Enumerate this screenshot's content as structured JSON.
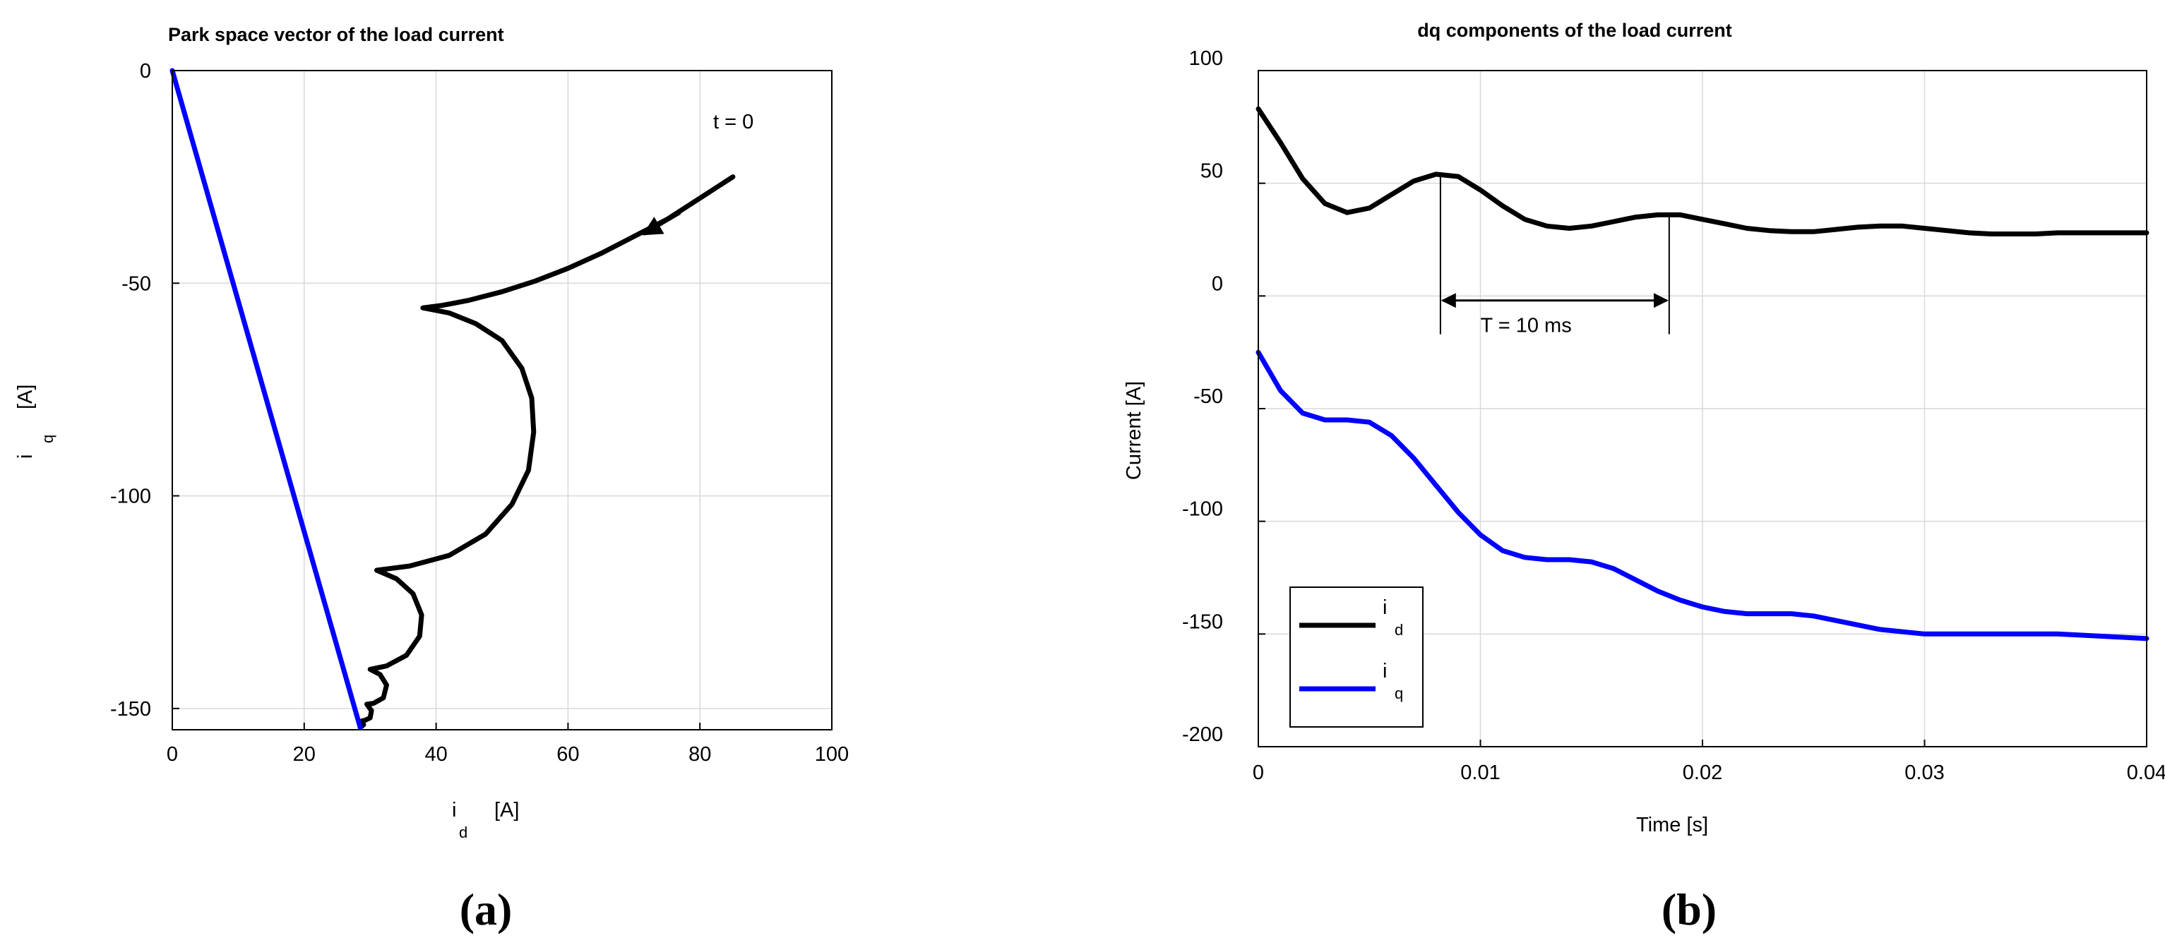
{
  "colors": {
    "id": "#000000",
    "iq": "#0000ff",
    "grid": "#d9d9d9"
  },
  "chart_data": [
    {
      "type": "line",
      "panel_label": "(a)",
      "title": "Park space vector of the load current",
      "xlabel_main": "i",
      "xlabel_sub": "d",
      "xlabel_unit": "[A]",
      "ylabel_main": "i",
      "ylabel_sub": "q",
      "ylabel_unit": "[A]",
      "xlim": [
        0,
        100
      ],
      "ylim": [
        -155,
        0
      ],
      "xticks": [
        0,
        20,
        40,
        60,
        80,
        100
      ],
      "yticks": [
        0,
        -50,
        -100,
        -150
      ],
      "grid": true,
      "annotation": "t = 0",
      "series": [
        {
          "color": "#000000",
          "points": [
            [
              85,
              -25
            ],
            [
              80,
              -30
            ],
            [
              75,
              -35
            ],
            [
              70,
              -39
            ],
            [
              65,
              -43
            ],
            [
              60,
              -46.5
            ],
            [
              55,
              -49.5
            ],
            [
              50,
              -52
            ],
            [
              45,
              -54
            ],
            [
              41,
              -55.2
            ],
            [
              38,
              -55.8
            ],
            [
              42,
              -57
            ],
            [
              46,
              -59.5
            ],
            [
              50,
              -63.5
            ],
            [
              53,
              -70
            ],
            [
              54.5,
              -77
            ],
            [
              54.8,
              -85
            ],
            [
              54,
              -94
            ],
            [
              51.5,
              -102
            ],
            [
              47.5,
              -109
            ],
            [
              42,
              -114
            ],
            [
              36,
              -116.5
            ],
            [
              31,
              -117.5
            ],
            [
              34,
              -119.5
            ],
            [
              36.5,
              -123
            ],
            [
              37.8,
              -128
            ],
            [
              37.5,
              -133
            ],
            [
              35.5,
              -137.5
            ],
            [
              32.5,
              -140
            ],
            [
              30,
              -140.8
            ],
            [
              31.5,
              -142
            ],
            [
              32.5,
              -144.5
            ],
            [
              32,
              -147.5
            ],
            [
              30.5,
              -148.8
            ],
            [
              29.5,
              -149
            ],
            [
              30.2,
              -150.5
            ],
            [
              30,
              -152.2
            ],
            [
              29.2,
              -152.8
            ],
            [
              28.8,
              -152.9
            ],
            [
              29,
              -153.8
            ],
            [
              28.5,
              -154.5
            ]
          ]
        },
        {
          "color": "#0000ff",
          "points": [
            [
              0,
              0
            ],
            [
              28.5,
              -154.5
            ]
          ]
        }
      ]
    },
    {
      "type": "line",
      "panel_label": "(b)",
      "title": "dq components of the load current",
      "xlabel": "Time   [s]",
      "ylabel": "Current   [A]",
      "xlim": [
        0,
        0.04
      ],
      "ylim": [
        -200,
        100
      ],
      "xticks": [
        "0",
        "0.01",
        "0.02",
        "0.03",
        "0.04"
      ],
      "yticks": [
        "100",
        "50",
        "0",
        "-50",
        "-100",
        "-150",
        "-200"
      ],
      "grid": true,
      "legend_position": "bottom-left",
      "annotation": "T = 10 ms",
      "series": [
        {
          "legend_main": "i",
          "legend_sub": "d",
          "color": "#000000",
          "x": [
            0,
            0.001,
            0.002,
            0.003,
            0.004,
            0.005,
            0.006,
            0.007,
            0.008,
            0.009,
            0.01,
            0.011,
            0.012,
            0.013,
            0.014,
            0.015,
            0.016,
            0.017,
            0.018,
            0.019,
            0.02,
            0.021,
            0.022,
            0.023,
            0.024,
            0.025,
            0.026,
            0.027,
            0.028,
            0.029,
            0.03,
            0.031,
            0.032,
            0.033,
            0.034,
            0.035,
            0.036,
            0.037,
            0.038,
            0.039,
            0.04
          ],
          "y": [
            83,
            68,
            52,
            41,
            37,
            39,
            45,
            51,
            54,
            53,
            47,
            40,
            34,
            31,
            30,
            31,
            33,
            35,
            36,
            36,
            34,
            32,
            30,
            29,
            28.5,
            28.5,
            29.5,
            30.5,
            31,
            31,
            30,
            29,
            28,
            27.5,
            27.5,
            27.5,
            28,
            28,
            28,
            28,
            28
          ]
        },
        {
          "legend_main": "i",
          "legend_sub": "q",
          "color": "#0000ff",
          "x": [
            0,
            0.001,
            0.002,
            0.003,
            0.004,
            0.005,
            0.006,
            0.007,
            0.008,
            0.009,
            0.01,
            0.011,
            0.012,
            0.013,
            0.014,
            0.015,
            0.016,
            0.017,
            0.018,
            0.019,
            0.02,
            0.021,
            0.022,
            0.023,
            0.024,
            0.025,
            0.026,
            0.027,
            0.028,
            0.029,
            0.03,
            0.031,
            0.032,
            0.033,
            0.034,
            0.035,
            0.036,
            0.037,
            0.038,
            0.039,
            0.04
          ],
          "y": [
            -25,
            -42,
            -52,
            -55,
            -55,
            -56,
            -62,
            -72,
            -84,
            -96,
            -106,
            -113,
            -116,
            -117,
            -117,
            -118,
            -121,
            -126,
            -131,
            -135,
            -138,
            -140,
            -141,
            -141,
            -141,
            -142,
            -144,
            -146,
            -148,
            -149,
            -150,
            -150,
            -150,
            -150,
            -150,
            -150,
            -150,
            -150.5,
            -151,
            -151.5,
            -152
          ]
        }
      ]
    }
  ]
}
